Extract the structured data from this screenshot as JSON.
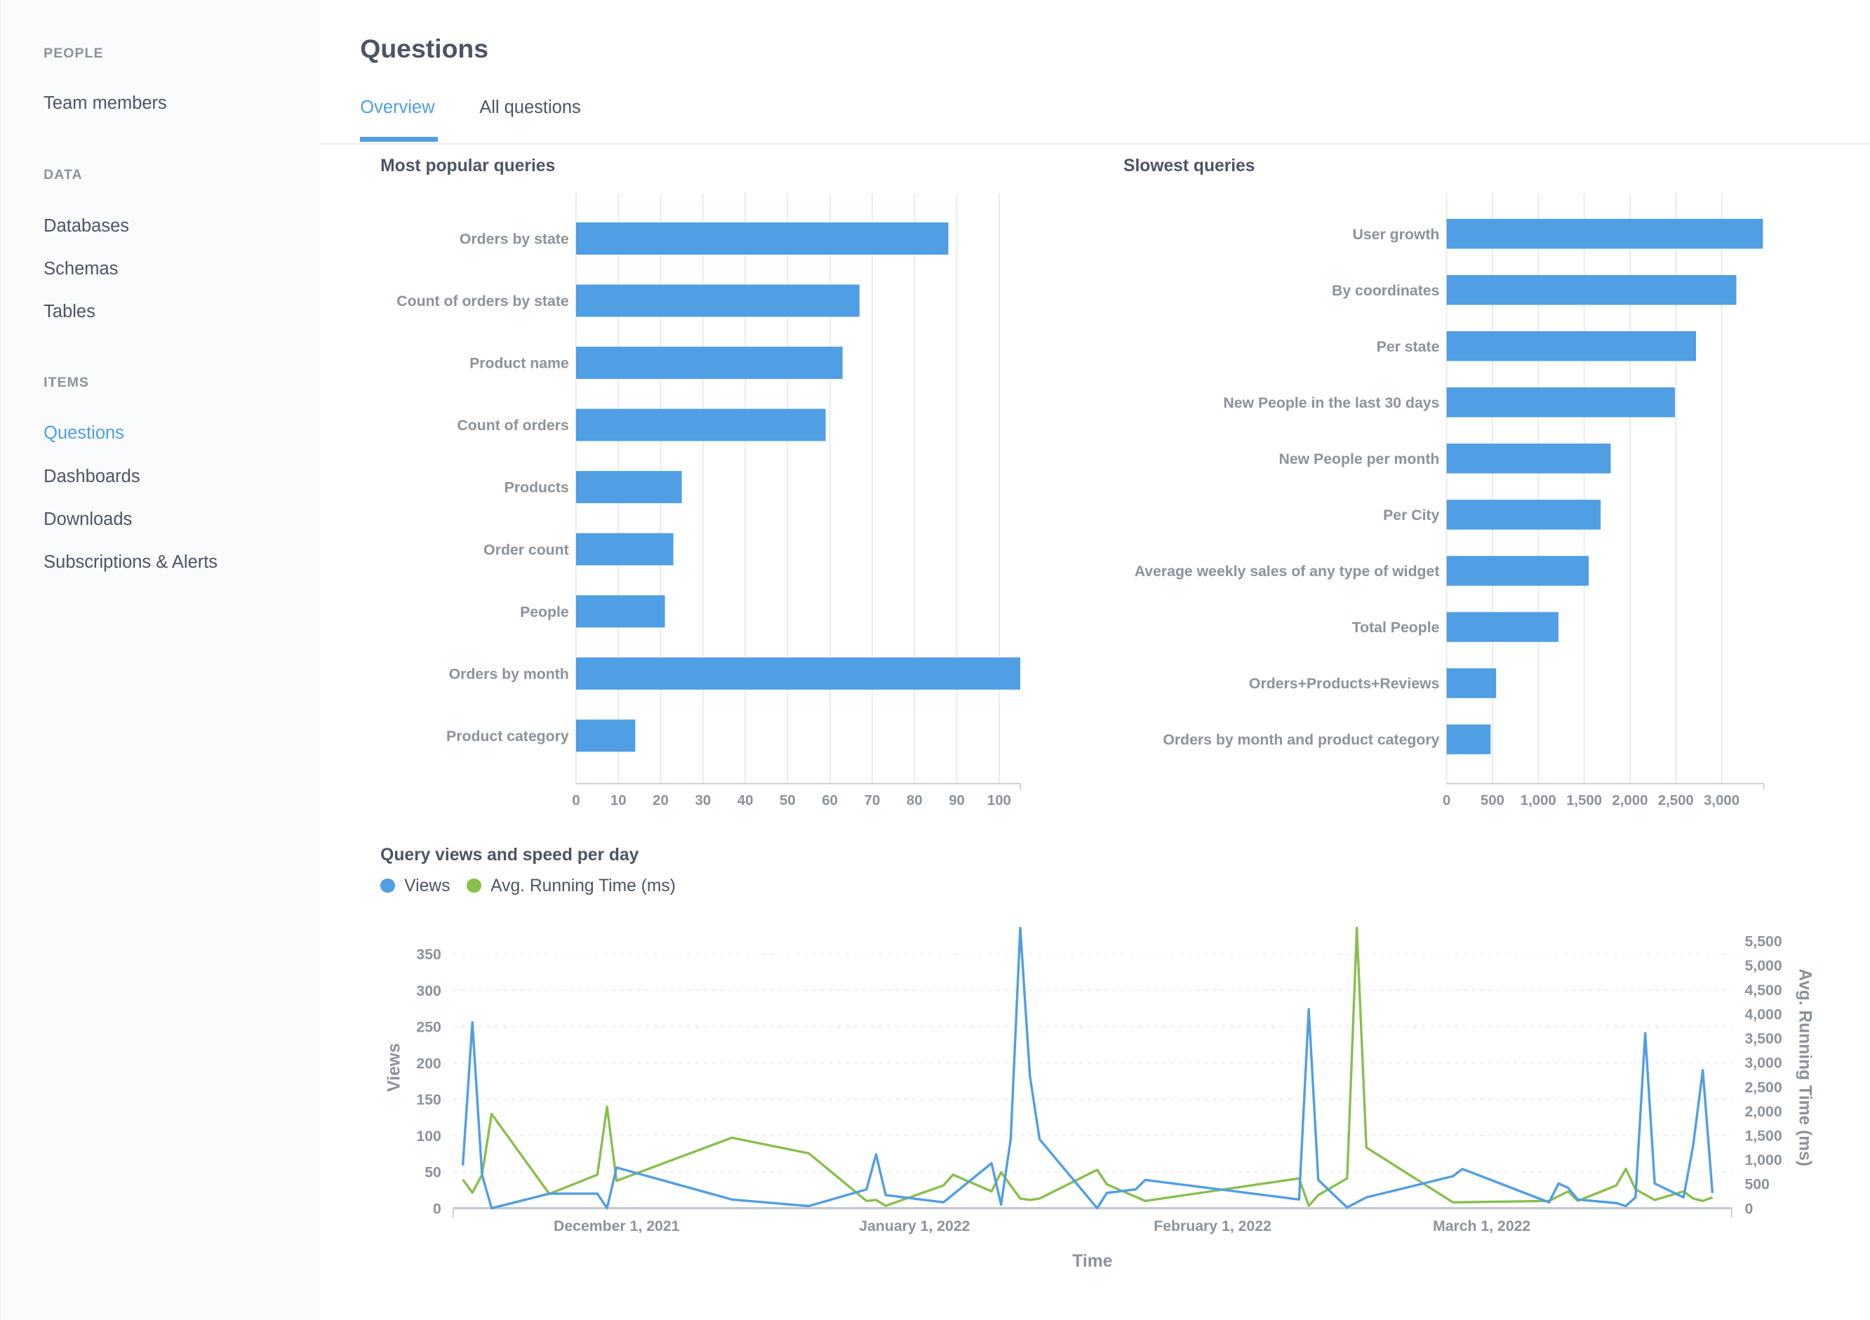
{
  "sidebar": {
    "sections": [
      {
        "label": "PEOPLE",
        "items": [
          "Team members"
        ]
      },
      {
        "label": "DATA",
        "items": [
          "Databases",
          "Schemas",
          "Tables"
        ]
      },
      {
        "label": "ITEMS",
        "items": [
          "Questions",
          "Dashboards",
          "Downloads",
          "Subscriptions & Alerts"
        ]
      }
    ],
    "active_item": "Questions"
  },
  "header": {
    "title": "Questions",
    "tabs": [
      "Overview",
      "All questions"
    ],
    "active_tab": "Overview"
  },
  "colors": {
    "accent": "#509ee3",
    "views": "#509ee3",
    "running_time": "#88bf4d",
    "text": "#4c5466",
    "muted": "#8b929c"
  },
  "chart_data": [
    {
      "type": "bar",
      "orientation": "horizontal",
      "title": "Most popular queries",
      "categories": [
        "Orders by state",
        "Count of orders by state",
        "Product name",
        "Count of orders",
        "Products",
        "Order count",
        "People",
        "Orders by month",
        "Product category"
      ],
      "values": [
        88,
        67,
        63,
        59,
        25,
        23,
        21,
        105,
        14
      ],
      "xlim": [
        0,
        105
      ],
      "ticks": [
        "0",
        "10",
        "20",
        "30",
        "40",
        "50",
        "60",
        "70",
        "80",
        "90",
        "100"
      ],
      "grid": true
    },
    {
      "type": "bar",
      "orientation": "horizontal",
      "title": "Slowest queries",
      "categories": [
        "User growth",
        "By coordinates",
        "Per state",
        "New People in the last 30 days",
        "New People per month",
        "Per City",
        "Average weekly sales of any type of widget",
        "Total People",
        "Orders+Products+Reviews",
        "Orders by month and product category"
      ],
      "values": [
        3450,
        3160,
        2720,
        2490,
        1790,
        1680,
        1550,
        1220,
        540,
        480
      ],
      "xlim": [
        0,
        3460
      ],
      "ticks": [
        "0",
        "500",
        "1,000",
        "1,500",
        "2,000",
        "2,500",
        "3,000"
      ],
      "grid": true
    },
    {
      "type": "line",
      "title": "Query views and speed per day",
      "xlabel": "Time",
      "ylabel": "Views",
      "y2label": "Avg. Running Time (ms)",
      "xlim": [
        "2021-11-14",
        "2022-03-27"
      ],
      "ylim": [
        0,
        386
      ],
      "y2lim": [
        0,
        5770
      ],
      "x_ticks": [
        {
          "date": "2021-12-01",
          "label": "December 1, 2021"
        },
        {
          "date": "2022-01-01",
          "label": "January 1, 2022"
        },
        {
          "date": "2022-02-01",
          "label": "February 1, 2022"
        },
        {
          "date": "2022-03-01",
          "label": "March 1, 2022"
        }
      ],
      "y_ticks": [
        "0",
        "50",
        "100",
        "150",
        "200",
        "250",
        "300",
        "350"
      ],
      "y2_ticks": [
        "0",
        "500",
        "1,000",
        "1,500",
        "2,000",
        "2,500",
        "3,000",
        "3,500",
        "4,000",
        "4,500",
        "5,000",
        "5,500"
      ],
      "legend": "top-left",
      "series": [
        {
          "name": "Views",
          "axis": "left",
          "points": [
            [
              "2021-11-15",
              59
            ],
            [
              "2021-11-16",
              256
            ],
            [
              "2021-11-17",
              46
            ],
            [
              "2021-11-18",
              0
            ],
            [
              "2021-11-24",
              20
            ],
            [
              "2021-11-29",
              20
            ],
            [
              "2021-11-30",
              0
            ],
            [
              "2021-12-01",
              56
            ],
            [
              "2021-12-13",
              12
            ],
            [
              "2021-12-21",
              3
            ],
            [
              "2021-12-27",
              26
            ],
            [
              "2021-12-28",
              74
            ],
            [
              "2021-12-29",
              18
            ],
            [
              "2022-01-04",
              8
            ],
            [
              "2022-01-09",
              62
            ],
            [
              "2022-01-10",
              5
            ],
            [
              "2022-01-11",
              95
            ],
            [
              "2022-01-12",
              386
            ],
            [
              "2022-01-13",
              182
            ],
            [
              "2022-01-14",
              95
            ],
            [
              "2022-01-20",
              0
            ],
            [
              "2022-01-21",
              21
            ],
            [
              "2022-01-24",
              26
            ],
            [
              "2022-01-25",
              39
            ],
            [
              "2022-02-10",
              12
            ],
            [
              "2022-02-11",
              274
            ],
            [
              "2022-02-12",
              39
            ],
            [
              "2022-02-15",
              1
            ],
            [
              "2022-02-17",
              15
            ],
            [
              "2022-02-26",
              44
            ],
            [
              "2022-02-27",
              54
            ],
            [
              "2022-03-08",
              8
            ],
            [
              "2022-03-09",
              34
            ],
            [
              "2022-03-10",
              28
            ],
            [
              "2022-03-11",
              12
            ],
            [
              "2022-03-15",
              7
            ],
            [
              "2022-03-16",
              3
            ],
            [
              "2022-03-17",
              15
            ],
            [
              "2022-03-18",
              241
            ],
            [
              "2022-03-19",
              34
            ],
            [
              "2022-03-22",
              15
            ],
            [
              "2022-03-23",
              87
            ],
            [
              "2022-03-24",
              190
            ],
            [
              "2022-03-25",
              21
            ]
          ]
        },
        {
          "name": "Avg. Running Time (ms)",
          "axis": "right",
          "points": [
            [
              "2021-11-15",
              590
            ],
            [
              "2021-11-16",
              320
            ],
            [
              "2021-11-17",
              690
            ],
            [
              "2021-11-18",
              1940
            ],
            [
              "2021-11-24",
              295
            ],
            [
              "2021-11-29",
              690
            ],
            [
              "2021-11-30",
              2090
            ],
            [
              "2021-12-01",
              565
            ],
            [
              "2021-12-13",
              1450
            ],
            [
              "2021-12-21",
              1130
            ],
            [
              "2021-12-27",
              150
            ],
            [
              "2021-12-28",
              170
            ],
            [
              "2021-12-29",
              50
            ],
            [
              "2022-01-04",
              470
            ],
            [
              "2022-01-05",
              690
            ],
            [
              "2022-01-09",
              345
            ],
            [
              "2022-01-10",
              740
            ],
            [
              "2022-01-12",
              200
            ],
            [
              "2022-01-13",
              170
            ],
            [
              "2022-01-14",
              200
            ],
            [
              "2022-01-20",
              790
            ],
            [
              "2022-01-21",
              490
            ],
            [
              "2022-01-25",
              150
            ],
            [
              "2022-02-10",
              615
            ],
            [
              "2022-02-11",
              50
            ],
            [
              "2022-02-12",
              270
            ],
            [
              "2022-02-15",
              615
            ],
            [
              "2022-02-16",
              5770
            ],
            [
              "2022-02-17",
              1250
            ],
            [
              "2022-02-26",
              120
            ],
            [
              "2022-03-08",
              150
            ],
            [
              "2022-03-10",
              345
            ],
            [
              "2022-03-11",
              150
            ],
            [
              "2022-03-15",
              470
            ],
            [
              "2022-03-16",
              810
            ],
            [
              "2022-03-17",
              390
            ],
            [
              "2022-03-19",
              170
            ],
            [
              "2022-03-22",
              345
            ],
            [
              "2022-03-23",
              200
            ],
            [
              "2022-03-24",
              150
            ],
            [
              "2022-03-25",
              220
            ]
          ]
        }
      ]
    }
  ]
}
